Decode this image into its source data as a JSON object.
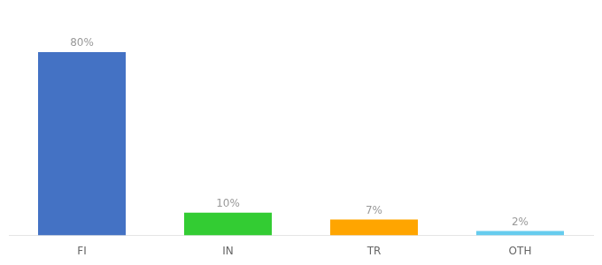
{
  "chart_data": {
    "type": "bar",
    "categories": [
      "FI",
      "IN",
      "TR",
      "OTH"
    ],
    "values": [
      80,
      10,
      7,
      2
    ],
    "value_labels": [
      "80%",
      "10%",
      "7%",
      "2%"
    ],
    "colors": [
      "#4472C4",
      "#33CC33",
      "#FFA500",
      "#66CCEE"
    ],
    "ylim": [
      0,
      95
    ],
    "grid": false,
    "data_labels": true,
    "tick_labels": "x"
  }
}
